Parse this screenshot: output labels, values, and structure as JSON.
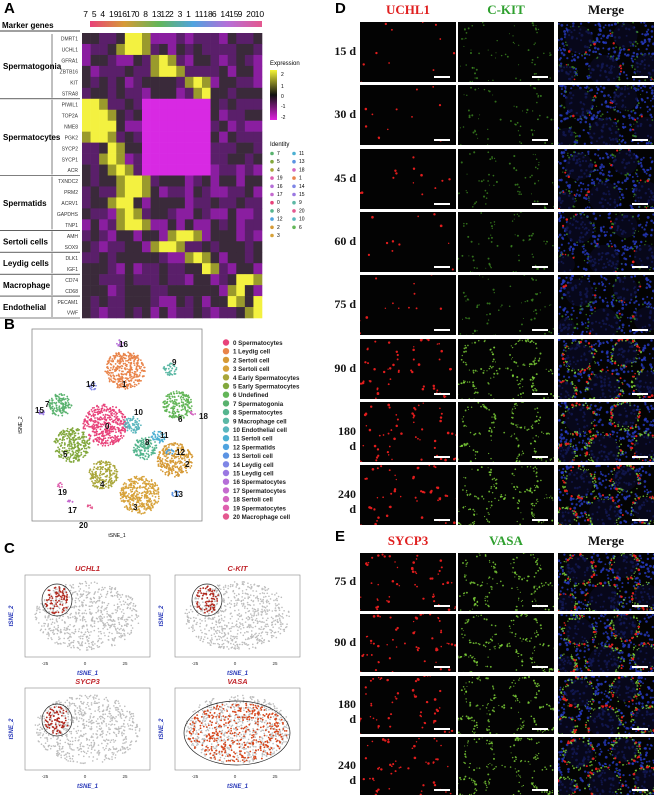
{
  "panel_labels": {
    "A": "A",
    "B": "B",
    "C": "C",
    "D": "D",
    "E": "E"
  },
  "heatmap": {
    "marker_genes_label": "Marker genes",
    "cluster_order": [
      "7",
      "5",
      "4",
      "19",
      "16",
      "17",
      "0",
      "8",
      "13",
      "12",
      "2",
      "3",
      "1",
      "11",
      "18",
      "6",
      "14",
      "15",
      "9",
      "20",
      "10"
    ],
    "groups": [
      {
        "name": "Spermatogonia",
        "genes": [
          "DMRT1",
          "UCHL1",
          "GFRA1",
          "ZBTB16",
          "KIT",
          "STRA8"
        ]
      },
      {
        "name": "Spermatocytes",
        "genes": [
          "PIWIL1",
          "TOP2A",
          "NME8",
          "PGK2",
          "SYCP2",
          "SYCP1",
          "ACR"
        ]
      },
      {
        "name": "Spermatids",
        "genes": [
          "TXNDC2",
          "PRM2",
          "ACRV1",
          "GAPDHS",
          "TNP1"
        ]
      },
      {
        "name": "Sertoli cells",
        "genes": [
          "AMH",
          "SOX9"
        ]
      },
      {
        "name": "Leydig cells",
        "genes": [
          "DLK1",
          "IGF1"
        ]
      },
      {
        "name": "Macrophage",
        "genes": [
          "CD74",
          "CD68"
        ]
      },
      {
        "name": "Endothelial",
        "genes": [
          "PECAM1",
          "VWF"
        ]
      }
    ],
    "expression_legend": {
      "title": "Expression",
      "ticks": [
        "2",
        "1",
        "0",
        "-1",
        "-2"
      ]
    },
    "identity_legend": {
      "title": "Identity",
      "items": [
        "7",
        "11",
        "5",
        "13",
        "4",
        "18",
        "19",
        "1",
        "16",
        "14",
        "17",
        "15",
        "0",
        "9",
        "8",
        "20",
        "12",
        "10",
        "2",
        "6",
        "3"
      ]
    }
  },
  "tsne_B": {
    "xlabel": "tSNE_1",
    "ylabel": "tSNE_2",
    "cluster_numbers": [
      "0",
      "1",
      "2",
      "3",
      "4",
      "5",
      "6",
      "7",
      "8",
      "9",
      "10",
      "11",
      "12",
      "13",
      "14",
      "15",
      "16",
      "17",
      "18",
      "19",
      "20"
    ],
    "legend": [
      "0  Spermatocytes",
      "1  Leydig cell",
      "2  Sertoli  cell",
      "3  Sertoli  cell",
      "4  Early Spermatocytes",
      "5  Early Spermatocytes",
      "6  Undefined",
      "7  Spermatogonia",
      "8  Spermatocytes",
      "9  Macrophage cell",
      "10  Endothelial cell",
      "11  Sertoli  cell",
      "12  Spermatids",
      "13  Sertoli  cell",
      "14  Leydig cell",
      "15  Leydig cell",
      "16  Spermatocytes",
      "17  Spermatocytes",
      "18  Sertoli  cell",
      "19  Spermatocytes",
      "20  Macrophage cell"
    ],
    "colors": [
      "#e8427a",
      "#e9844a",
      "#d69a36",
      "#d7a23a",
      "#a9a63a",
      "#82a83c",
      "#63b658",
      "#59b26e",
      "#55b58e",
      "#5cb8a5",
      "#5ab6bd",
      "#4cb0d2",
      "#4fa3df",
      "#5b93e3",
      "#7e86e6",
      "#9a78e2",
      "#b56fd8",
      "#c56bcf",
      "#d466c0",
      "#df5fae",
      "#e4588f"
    ]
  },
  "tsne_C": {
    "plots": [
      {
        "gene": "UCHL1",
        "xlabel": "tSNE_1",
        "ylabel": "tSNE_2",
        "ticks": [
          "-25",
          "0",
          "25"
        ]
      },
      {
        "gene": "C-KIT",
        "xlabel": "tSNE_1",
        "ylabel": "tSNE_2",
        "ticks": [
          "-25",
          "0",
          "25"
        ]
      },
      {
        "gene": "SYCP3",
        "xlabel": "tSNE_1",
        "ylabel": "tSNE_2",
        "ticks": [
          "-25",
          "0",
          "25"
        ]
      },
      {
        "gene": "VASA",
        "xlabel": "tSNE_1",
        "ylabel": "tSNE_2",
        "ticks": [
          "-25",
          "0",
          "25"
        ]
      }
    ]
  },
  "panel_D": {
    "columns": [
      "UCHL1",
      "C-KIT",
      "Merge"
    ],
    "column_colors": [
      "#e02020",
      "#2fa02f",
      "#111111"
    ],
    "rows": [
      "15 d",
      "30 d",
      "45 d",
      "60 d",
      "75 d",
      "90 d",
      "180 d",
      "240 d"
    ]
  },
  "panel_E": {
    "columns": [
      "SYCP3",
      "VASA",
      "Merge"
    ],
    "column_colors": [
      "#e02020",
      "#2fa02f",
      "#111111"
    ],
    "rows": [
      "75 d",
      "90 d",
      "180 d",
      "240 d"
    ]
  }
}
